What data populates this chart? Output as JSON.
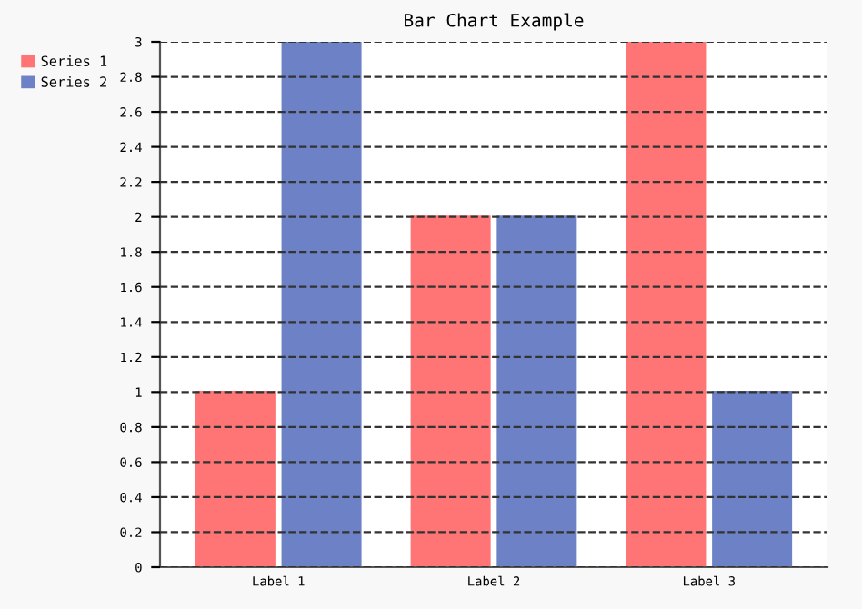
{
  "chart_data": {
    "type": "bar",
    "title": "Bar Chart Example",
    "categories": [
      "Label 1",
      "Label 2",
      "Label 3"
    ],
    "series": [
      {
        "name": "Series 1",
        "color": "#ff7575",
        "values": [
          1,
          2,
          3
        ]
      },
      {
        "name": "Series 2",
        "color": "#6d82c6",
        "values": [
          3,
          2,
          1
        ]
      }
    ],
    "ylim": [
      0,
      3
    ],
    "yticks": [
      0,
      0.2,
      0.4,
      0.6,
      0.8,
      1,
      1.2,
      1.4,
      1.6,
      1.8,
      2,
      2.2,
      2.4,
      2.6,
      2.8,
      3
    ],
    "grid": "y",
    "legend": "top left",
    "line_style": "dashed"
  }
}
